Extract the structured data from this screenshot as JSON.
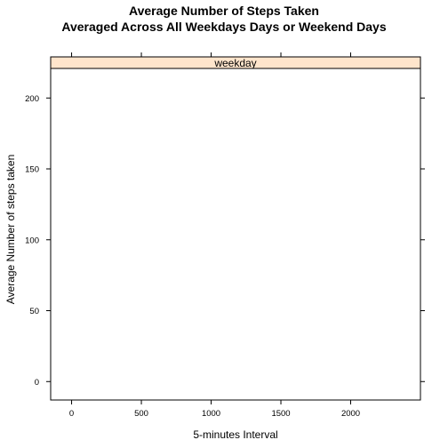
{
  "chart_data": {
    "type": "line",
    "title": [
      "Average Number of Steps Taken",
      "Averaged Across All Weekdays Days or Weekend Days"
    ],
    "xlabel": "5-minutes Interval",
    "ylabel": "Average Number of steps taken",
    "panel": "weekday",
    "xlim": [
      -150,
      2500
    ],
    "ylim": [
      -13,
      229
    ],
    "xticks": [
      0,
      500,
      1000,
      1500,
      2000
    ],
    "yticks": [
      0,
      50,
      100,
      150,
      200
    ],
    "series": [],
    "strip_color": "#ffe5cc",
    "grid": false
  }
}
